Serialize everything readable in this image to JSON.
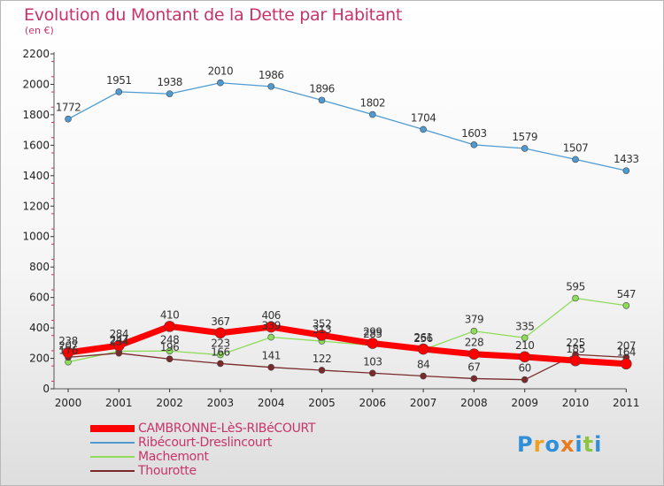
{
  "chart_data": {
    "type": "line",
    "title": "Evolution du Montant de la Dette par Habitant",
    "subtitle": "(en €)",
    "x": [
      "2000",
      "2001",
      "2002",
      "2003",
      "2004",
      "2005",
      "2006",
      "2007",
      "2008",
      "2009",
      "2010",
      "2011"
    ],
    "ylim": [
      0,
      2200
    ],
    "yticks": [
      0,
      200,
      400,
      600,
      800,
      1000,
      1200,
      1400,
      1600,
      1800,
      2000,
      2200
    ],
    "grid": false,
    "legend_position": "bottom-left",
    "series": [
      {
        "name": "CAMBRONNE-LèS-RIBéCOURT",
        "color": "#ff0000",
        "values": [
          238,
          284,
          410,
          367,
          406,
          352,
          299,
          261,
          228,
          210,
          185,
          164
        ]
      },
      {
        "name": "Ribécourt-Dreslincourt",
        "color": "#4f9bd1",
        "values": [
          1772,
          1951,
          1938,
          2010,
          1986,
          1896,
          1802,
          1704,
          1603,
          1579,
          1507,
          1433
        ]
      },
      {
        "name": "Machemont",
        "color": "#8fdc5a",
        "values": [
          176,
          247,
          248,
          223,
          339,
          313,
          285,
          256,
          379,
          335,
          595,
          547
        ]
      },
      {
        "name": "Thourotte",
        "color": "#7a2a2a",
        "values": [
          207,
          234,
          196,
          166,
          141,
          122,
          103,
          84,
          67,
          60,
          225,
          207
        ]
      }
    ]
  },
  "logo": {
    "text": "Proxiti"
  }
}
